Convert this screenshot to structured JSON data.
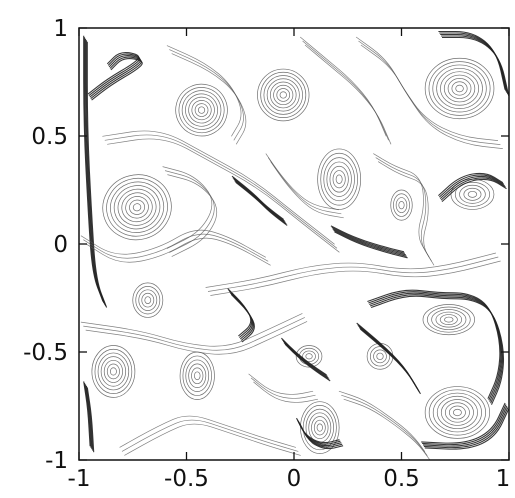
{
  "chart_data": {
    "type": "contour",
    "title": "",
    "xlabel": "",
    "ylabel": "",
    "xlim": [
      -1,
      1
    ],
    "ylim": [
      -1,
      1
    ],
    "x_ticks": [
      -1,
      -0.5,
      0,
      0.5,
      1
    ],
    "y_ticks": [
      -1,
      -0.5,
      0,
      0.5,
      1
    ],
    "x_tick_labels": [
      "-1",
      "-0.5",
      "0",
      "0.5",
      "1"
    ],
    "y_tick_labels": [
      "-1",
      "-0.5",
      "0",
      "0.5",
      "1"
    ],
    "grid": false,
    "legend": "none",
    "line_color": "#555555",
    "frame_color": "#111111",
    "vortices": [
      {
        "x": -0.43,
        "y": 0.62,
        "rx": 0.12,
        "ry": 0.12,
        "angle": -30,
        "rings": 8
      },
      {
        "x": -0.05,
        "y": 0.69,
        "rx": 0.12,
        "ry": 0.12,
        "angle": 0,
        "rings": 8
      },
      {
        "x": 0.77,
        "y": 0.72,
        "rx": 0.16,
        "ry": 0.14,
        "angle": 0,
        "rings": 9
      },
      {
        "x": -0.73,
        "y": 0.17,
        "rx": 0.16,
        "ry": 0.15,
        "angle": -15,
        "rings": 9
      },
      {
        "x": 0.21,
        "y": 0.3,
        "rx": 0.1,
        "ry": 0.14,
        "angle": 0,
        "rings": 7
      },
      {
        "x": 0.5,
        "y": 0.18,
        "rx": 0.05,
        "ry": 0.07,
        "angle": 0,
        "rings": 4
      },
      {
        "x": 0.83,
        "y": 0.23,
        "rx": 0.1,
        "ry": 0.07,
        "angle": 0,
        "rings": 5
      },
      {
        "x": -0.68,
        "y": -0.26,
        "rx": 0.07,
        "ry": 0.08,
        "angle": 0,
        "rings": 5
      },
      {
        "x": -0.84,
        "y": -0.59,
        "rx": 0.1,
        "ry": 0.12,
        "angle": 0,
        "rings": 7
      },
      {
        "x": -0.45,
        "y": -0.61,
        "rx": 0.08,
        "ry": 0.11,
        "angle": 0,
        "rings": 6
      },
      {
        "x": 0.72,
        "y": -0.35,
        "rx": 0.12,
        "ry": 0.07,
        "angle": 0,
        "rings": 6
      },
      {
        "x": 0.76,
        "y": -0.78,
        "rx": 0.15,
        "ry": 0.12,
        "angle": 0,
        "rings": 8
      },
      {
        "x": 0.12,
        "y": -0.85,
        "rx": 0.09,
        "ry": 0.12,
        "angle": 0,
        "rings": 7
      },
      {
        "x": 0.07,
        "y": -0.52,
        "rx": 0.06,
        "ry": 0.05,
        "angle": 0,
        "rings": 4
      },
      {
        "x": 0.4,
        "y": -0.52,
        "rx": 0.06,
        "ry": 0.06,
        "angle": 0,
        "rings": 4
      }
    ],
    "filaments": [
      {
        "weight": "heavy",
        "points": [
          [
            -0.97,
            0.95
          ],
          [
            -0.97,
            0.55
          ],
          [
            -0.95,
            0.15
          ],
          [
            -0.93,
            -0.15
          ],
          [
            -0.88,
            -0.28
          ]
        ]
      },
      {
        "weight": "heavy",
        "points": [
          [
            -0.95,
            0.68
          ],
          [
            -0.86,
            0.75
          ],
          [
            -0.74,
            0.82
          ],
          [
            -0.7,
            0.86
          ],
          [
            -0.8,
            0.88
          ],
          [
            -0.86,
            0.82
          ]
        ]
      },
      {
        "weight": "heavy",
        "points": [
          [
            -0.97,
            -0.65
          ],
          [
            -0.95,
            -0.78
          ],
          [
            -0.94,
            -0.95
          ]
        ]
      },
      {
        "weight": "heavy",
        "points": [
          [
            0.68,
            0.97
          ],
          [
            0.84,
            0.97
          ],
          [
            0.95,
            0.88
          ],
          [
            0.99,
            0.7
          ]
        ]
      },
      {
        "weight": "heavy",
        "points": [
          [
            0.68,
            0.21
          ],
          [
            0.78,
            0.3
          ],
          [
            0.9,
            0.32
          ],
          [
            0.98,
            0.27
          ]
        ]
      },
      {
        "weight": "heavy",
        "points": [
          [
            0.35,
            -0.28
          ],
          [
            0.52,
            -0.22
          ],
          [
            0.68,
            -0.24
          ],
          [
            0.82,
            -0.24
          ],
          [
            0.92,
            -0.3
          ],
          [
            0.97,
            -0.47
          ],
          [
            0.96,
            -0.62
          ],
          [
            0.91,
            -0.73
          ]
        ]
      },
      {
        "weight": "heavy",
        "points": [
          [
            0.3,
            -0.38
          ],
          [
            0.42,
            -0.48
          ],
          [
            0.52,
            -0.58
          ],
          [
            0.58,
            -0.68
          ]
        ]
      },
      {
        "weight": "heavy",
        "points": [
          [
            0.6,
            -0.93
          ],
          [
            0.8,
            -0.94
          ],
          [
            0.93,
            -0.88
          ],
          [
            0.99,
            -0.75
          ]
        ]
      },
      {
        "weight": "heavy",
        "points": [
          [
            -0.28,
            0.3
          ],
          [
            -0.18,
            0.22
          ],
          [
            -0.12,
            0.16
          ],
          [
            -0.04,
            0.1
          ]
        ]
      },
      {
        "weight": "heavy",
        "points": [
          [
            -0.05,
            -0.45
          ],
          [
            0.02,
            -0.52
          ],
          [
            0.1,
            -0.58
          ],
          [
            0.16,
            -0.62
          ]
        ]
      },
      {
        "weight": "heavy",
        "points": [
          [
            0.02,
            -0.82
          ],
          [
            0.06,
            -0.9
          ],
          [
            0.14,
            -0.94
          ],
          [
            0.22,
            -0.92
          ]
        ]
      },
      {
        "weight": "heavy",
        "points": [
          [
            0.18,
            0.07
          ],
          [
            0.28,
            0.02
          ],
          [
            0.4,
            -0.02
          ],
          [
            0.52,
            -0.05
          ]
        ]
      },
      {
        "weight": "heavy",
        "points": [
          [
            -0.3,
            -0.22
          ],
          [
            -0.22,
            -0.3
          ],
          [
            -0.18,
            -0.38
          ],
          [
            -0.25,
            -0.44
          ]
        ]
      },
      {
        "weight": "light",
        "points": [
          [
            -0.88,
            0.48
          ],
          [
            -0.62,
            0.52
          ],
          [
            -0.4,
            0.4
          ],
          [
            -0.18,
            0.28
          ],
          [
            0.02,
            0.12
          ],
          [
            0.2,
            -0.02
          ]
        ]
      },
      {
        "weight": "light",
        "points": [
          [
            -0.58,
            0.9
          ],
          [
            -0.4,
            0.82
          ],
          [
            -0.28,
            0.72
          ],
          [
            -0.22,
            0.58
          ],
          [
            -0.28,
            0.48
          ]
        ]
      },
      {
        "weight": "light",
        "points": [
          [
            0.04,
            0.94
          ],
          [
            0.16,
            0.84
          ],
          [
            0.28,
            0.74
          ],
          [
            0.38,
            0.62
          ],
          [
            0.44,
            0.48
          ]
        ]
      },
      {
        "weight": "light",
        "points": [
          [
            -0.98,
            0.02
          ],
          [
            -0.82,
            -0.08
          ],
          [
            -0.62,
            -0.04
          ],
          [
            -0.45,
            0.06
          ],
          [
            -0.3,
            0.02
          ],
          [
            -0.12,
            -0.08
          ]
        ]
      },
      {
        "weight": "light",
        "points": [
          [
            -0.4,
            -0.22
          ],
          [
            -0.15,
            -0.18
          ],
          [
            0.08,
            -0.12
          ],
          [
            0.3,
            -0.1
          ],
          [
            0.52,
            -0.14
          ],
          [
            0.72,
            -0.12
          ],
          [
            0.95,
            -0.06
          ]
        ]
      },
      {
        "weight": "light",
        "points": [
          [
            -0.98,
            -0.38
          ],
          [
            -0.7,
            -0.42
          ],
          [
            -0.5,
            -0.48
          ],
          [
            -0.3,
            -0.5
          ],
          [
            -0.12,
            -0.42
          ],
          [
            0.05,
            -0.34
          ]
        ]
      },
      {
        "weight": "light",
        "points": [
          [
            -0.8,
            -0.96
          ],
          [
            -0.62,
            -0.86
          ],
          [
            -0.48,
            -0.8
          ],
          [
            -0.3,
            -0.86
          ],
          [
            -0.12,
            -0.92
          ],
          [
            0.02,
            -0.96
          ]
        ]
      },
      {
        "weight": "light",
        "points": [
          [
            0.3,
            0.94
          ],
          [
            0.44,
            0.84
          ],
          [
            0.52,
            0.7
          ],
          [
            0.62,
            0.56
          ],
          [
            0.78,
            0.48
          ],
          [
            0.96,
            0.46
          ]
        ]
      },
      {
        "weight": "light",
        "points": [
          [
            0.38,
            0.4
          ],
          [
            0.48,
            0.34
          ],
          [
            0.6,
            0.3
          ],
          [
            0.62,
            0.16
          ],
          [
            0.58,
            0.02
          ],
          [
            0.64,
            -0.08
          ]
        ]
      },
      {
        "weight": "light",
        "points": [
          [
            -0.6,
            0.34
          ],
          [
            -0.45,
            0.3
          ],
          [
            -0.35,
            0.18
          ],
          [
            -0.42,
            0.04
          ],
          [
            -0.58,
            -0.04
          ]
        ]
      },
      {
        "weight": "light",
        "points": [
          [
            0.22,
            -0.7
          ],
          [
            0.34,
            -0.74
          ],
          [
            0.46,
            -0.82
          ],
          [
            0.56,
            -0.9
          ],
          [
            0.62,
            -0.98
          ]
        ]
      },
      {
        "weight": "light",
        "points": [
          [
            -0.12,
            0.4
          ],
          [
            -0.05,
            0.3
          ],
          [
            0.02,
            0.22
          ],
          [
            0.1,
            0.16
          ],
          [
            0.22,
            0.14
          ]
        ]
      },
      {
        "weight": "light",
        "points": [
          [
            -0.2,
            -0.62
          ],
          [
            -0.1,
            -0.7
          ],
          [
            0.0,
            -0.72
          ],
          [
            0.1,
            -0.7
          ]
        ]
      }
    ]
  }
}
